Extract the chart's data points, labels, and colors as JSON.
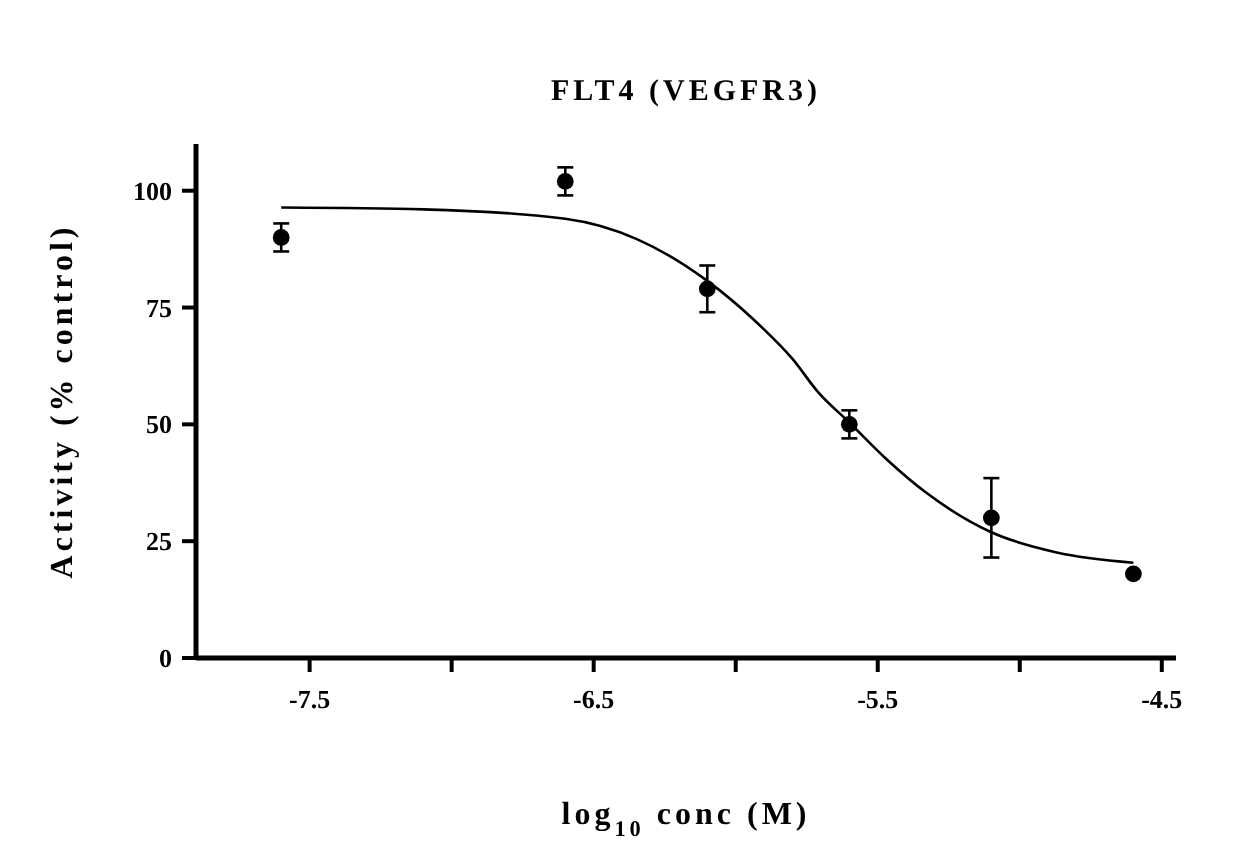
{
  "chart_data": {
    "type": "scatter",
    "title": "FLT4 (VEGFR3)",
    "xlabel": "log$_{10}$ conc (M)",
    "ylabel": "Activity (% control)",
    "xlim": [
      -7.9,
      -4.45
    ],
    "xticks": [
      -7.5,
      {
        "value": -7,
        "label": null
      },
      -6.5,
      {
        "value": -6,
        "label": null
      },
      -5.5,
      {
        "value": -5,
        "label": null
      },
      -4.5
    ],
    "ylim": [
      0,
      110
    ],
    "yticks": [
      0,
      25,
      50,
      75,
      100
    ],
    "grid": false,
    "series": [
      {
        "color": "#000000",
        "marker": "circle",
        "x": [
          -7.6,
          -6.6,
          -6.1,
          -5.6,
          -5.1,
          -4.6
        ],
        "values": [
          90,
          102,
          79,
          50,
          30,
          18
        ],
        "errors": [
          3,
          3,
          5,
          3,
          8.5,
          null
        ]
      },
      {
        "type": "line",
        "color": "#000000",
        "line_style": "solid",
        "x": [
          -7.6,
          -7.1,
          -6.6,
          -6.35,
          -6.1,
          -5.94,
          -5.8,
          -5.71,
          -5.6,
          -5.47,
          -5.33,
          -5.1,
          -4.87,
          -4.6
        ],
        "values": [
          96.4,
          96,
          94,
          89.7,
          80.7,
          72.6,
          64,
          56.9,
          50.4,
          42.6,
          35.4,
          26.9,
          22.6,
          20.4
        ]
      }
    ]
  }
}
